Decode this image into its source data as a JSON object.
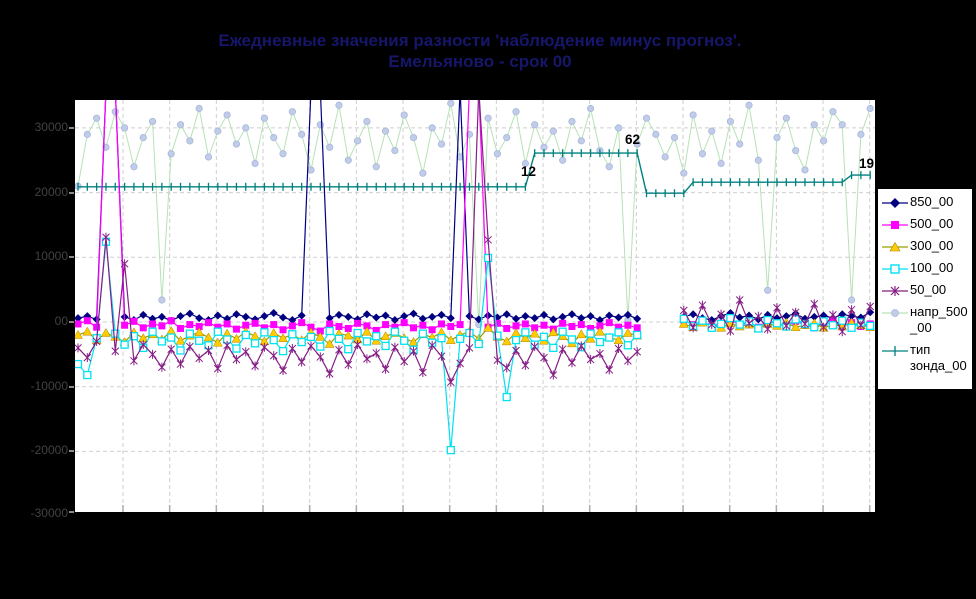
{
  "title": {
    "line1": "Ежедневные значения разности 'наблюдение минус прогноз'.",
    "line2": "Емельяново - срок 00"
  },
  "legend": {
    "items": [
      {
        "key": "850_00",
        "lines": [
          "850_00"
        ]
      },
      {
        "key": "500_00",
        "lines": [
          "500_00"
        ]
      },
      {
        "key": "300_00",
        "lines": [
          "300_00"
        ]
      },
      {
        "key": "100_00",
        "lines": [
          "100_00"
        ]
      },
      {
        "key": "50_00",
        "lines": [
          "50_00"
        ]
      },
      {
        "key": "napr_500_00",
        "lines": [
          "напр_500",
          "_00"
        ]
      },
      {
        "key": "tip_zonda_00",
        "lines": [
          "тип",
          "зонда_00"
        ]
      }
    ]
  },
  "chart_data": {
    "type": "line",
    "title": "Ежедневные значения разности 'наблюдение минус прогноз'. Емельяново - срок 00",
    "grid": "dashed",
    "legend_position": "right",
    "y_axis": {
      "labels": [
        "30000",
        "20000",
        "10000",
        "00",
        "-10000",
        "-20000",
        "-30000"
      ],
      "values": [
        30000,
        20000,
        10000,
        0,
        -10000,
        -20000,
        -30000
      ],
      "ylim": [
        -32000,
        34000
      ]
    },
    "x_axis": {
      "labels_visible": false,
      "gridline_count": 17,
      "points": 86
    },
    "annotations": [
      {
        "text": "12",
        "x": 446,
        "y": 76
      },
      {
        "text": "62",
        "x": 550,
        "y": 44
      },
      {
        "text": "19",
        "x": 784,
        "y": 68
      }
    ],
    "colors": {
      "s850": "#000080",
      "s500": "#FF00FF",
      "s300_line": "#98A000",
      "s300_marker": "#FFCC00",
      "s100": "#00E1F2",
      "s50": "#851F85",
      "napr_line": "#B6E2B6",
      "napr_marker": "#C0CCE8",
      "tip": "#008080",
      "gridline": "#CFCFCF",
      "annotation": "#000000"
    },
    "series": [
      {
        "name": "850_00",
        "color": "#000080",
        "marker": "diamond",
        "values": [
          600,
          900,
          400,
          36000,
          36000,
          800,
          300,
          1100,
          500,
          800,
          200,
          900,
          1300,
          600,
          300,
          1000,
          500,
          1200,
          800,
          400,
          900,
          1400,
          700,
          300,
          1000,
          36000,
          36000,
          600,
          1100,
          800,
          400,
          1200,
          700,
          1000,
          300,
          900,
          1300,
          500,
          800,
          1100,
          600,
          36000,
          900,
          400,
          1000,
          700,
          1200,
          500,
          900,
          600,
          1100,
          400,
          800,
          1200,
          600,
          900,
          300,
          1000,
          700,
          1100,
          500,
          null,
          null,
          null,
          null,
          800,
          1200,
          600,
          300,
          900,
          1400,
          700,
          1000,
          400,
          1100,
          600,
          900,
          1300,
          500,
          800,
          1000,
          600,
          1200,
          900,
          700,
          1500
        ]
      },
      {
        "name": "500_00",
        "color": "#FF00FF",
        "marker": "square",
        "values": [
          -300,
          200,
          -800,
          36000,
          36000,
          -500,
          100,
          -900,
          -300,
          -600,
          200,
          -1000,
          -400,
          -700,
          -100,
          -800,
          -300,
          -1100,
          -500,
          -200,
          -900,
          -400,
          -1200,
          -600,
          -100,
          -800,
          -1400,
          -300,
          -700,
          -1000,
          -200,
          -600,
          -1300,
          -400,
          -800,
          -100,
          -900,
          -500,
          -1200,
          -300,
          -700,
          -400,
          36000,
          36000,
          -800,
          -200,
          -1000,
          -600,
          -300,
          -900,
          -500,
          -1100,
          -200,
          -700,
          -400,
          -1000,
          -600,
          -100,
          -800,
          -500,
          -900,
          null,
          null,
          null,
          null,
          300,
          -400,
          100,
          -700,
          -200,
          400,
          -500,
          -100,
          -800,
          200,
          -300,
          -600,
          100,
          -400,
          -900,
          -200,
          300,
          -500,
          -100,
          -700,
          -300
        ]
      },
      {
        "name": "300_00",
        "color": "#98A000",
        "marker": "triangle",
        "marker_color": "#FFCC00",
        "values": [
          -2000,
          -1500,
          -2800,
          -1700,
          -2300,
          -3100,
          -1600,
          -2500,
          -1900,
          -2700,
          -1400,
          -2900,
          -2100,
          -1600,
          -2400,
          -3200,
          -1800,
          -2600,
          -1500,
          -2200,
          -3000,
          -1700,
          -2500,
          -1900,
          -2800,
          -1600,
          -2300,
          -3400,
          -1800,
          -2100,
          -2700,
          -1500,
          -2900,
          -2200,
          -1700,
          -2500,
          -3100,
          -1900,
          -2400,
          -1600,
          -2800,
          -2000,
          -1500,
          -2600,
          -900,
          -2300,
          -3000,
          -1700,
          -2500,
          -1800,
          -2900,
          -1600,
          -2200,
          -3300,
          -1900,
          -2600,
          -1500,
          -2400,
          -2800,
          -1700,
          -2100,
          null,
          null,
          null,
          null,
          -300,
          -800,
          -100,
          -600,
          -900,
          -200,
          -700,
          -400,
          -1000,
          -300,
          -600,
          -100,
          -800,
          -500,
          -200,
          -900,
          -400,
          -700,
          -100,
          -500,
          -800
        ]
      },
      {
        "name": "100_00",
        "color": "#00E1F2",
        "marker": "square-open",
        "values": [
          -6500,
          -8200,
          -2500,
          12400,
          -1800,
          -3500,
          -2200,
          -4000,
          -1500,
          -3000,
          -2400,
          -4400,
          -1800,
          -2900,
          -3600,
          -1500,
          -2700,
          -4100,
          -2000,
          -3300,
          -1600,
          -2800,
          -4500,
          -1900,
          -3100,
          -2300,
          -3800,
          -1400,
          -2600,
          -4200,
          -1700,
          -3000,
          -2200,
          -3700,
          -1500,
          -2900,
          -4300,
          -1800,
          -3200,
          -2500,
          -19800,
          -2600,
          -1700,
          -3400,
          9900,
          -2100,
          -11600,
          -2800,
          -1600,
          -3500,
          -2300,
          -4000,
          -1500,
          -2700,
          -3900,
          -1800,
          -3100,
          -2400,
          -1600,
          -3600,
          -2000,
          null,
          null,
          null,
          null,
          500,
          -600,
          200,
          -900,
          -300,
          600,
          -400,
          100,
          -1000,
          300,
          -200,
          -700,
          400,
          -300,
          -800,
          100,
          -500,
          200,
          -900,
          -100,
          -600
        ]
      },
      {
        "name": "50_00",
        "color": "#851F85",
        "marker": "asterisk",
        "values": [
          -4000,
          -5500,
          -3000,
          13100,
          -4500,
          9000,
          -6000,
          -3500,
          -5000,
          -7000,
          -4200,
          -6500,
          -3800,
          -5600,
          -4400,
          -7200,
          -3600,
          -5800,
          -4600,
          -6800,
          -3900,
          -5200,
          -7500,
          -4100,
          -6200,
          -3700,
          -5400,
          -8000,
          -4300,
          -6600,
          -3500,
          -5700,
          -4800,
          -7300,
          -3900,
          -6100,
          -4500,
          -7800,
          -3600,
          -5300,
          -9300,
          -6400,
          -4000,
          36000,
          12700,
          -5900,
          -7100,
          -4400,
          -6700,
          -3800,
          -5500,
          -8200,
          -4200,
          -6300,
          -3700,
          -5800,
          -4900,
          -7400,
          -4100,
          -6000,
          -4600,
          null,
          null,
          null,
          null,
          1800,
          -900,
          2600,
          -400,
          1200,
          -1400,
          3400,
          -200,
          900,
          -1100,
          2200,
          -600,
          1500,
          -300,
          2800,
          -800,
          1100,
          -1500,
          1900,
          -500,
          2400
        ]
      },
      {
        "name": "напр_500_00",
        "color": "#B6E2B6",
        "marker": "circle",
        "marker_color": "#C0CCE8",
        "values": [
          21000,
          29000,
          31500,
          27000,
          32500,
          30000,
          24000,
          28500,
          31000,
          3400,
          26000,
          30500,
          28000,
          33000,
          25500,
          29500,
          32000,
          27500,
          30000,
          24500,
          31500,
          28500,
          26000,
          32500,
          29000,
          23500,
          30500,
          27000,
          33500,
          25000,
          28000,
          31000,
          24000,
          29500,
          26500,
          32000,
          28500,
          23000,
          30000,
          27500,
          33800,
          25500,
          29000,
          -400,
          31500,
          26000,
          28500,
          32500,
          24500,
          30500,
          27000,
          29500,
          25000,
          31000,
          28000,
          33000,
          26500,
          24000,
          30000,
          300,
          27500,
          31500,
          29000,
          25500,
          28500,
          23000,
          32000,
          26000,
          29500,
          24500,
          31000,
          27500,
          33500,
          25000,
          4900,
          28500,
          31500,
          26500,
          23500,
          30500,
          28000,
          32500,
          30500,
          3400,
          29000,
          33000
        ]
      },
      {
        "name": "тип зонда_00",
        "color": "#008080",
        "marker": "plus",
        "values": [
          20900,
          20900,
          20900,
          20900,
          20900,
          20900,
          20900,
          20900,
          20900,
          20900,
          20900,
          20900,
          20900,
          20900,
          20900,
          20900,
          20900,
          20900,
          20900,
          20900,
          20900,
          20900,
          20900,
          20900,
          20900,
          20900,
          20900,
          20900,
          20900,
          20900,
          20900,
          20900,
          20900,
          20900,
          20900,
          20900,
          20900,
          20900,
          20900,
          20900,
          20900,
          20900,
          20900,
          20900,
          20900,
          20900,
          20900,
          20900,
          20900,
          26100,
          26100,
          26100,
          26100,
          26100,
          26100,
          26100,
          26100,
          26100,
          26100,
          26100,
          26100,
          19900,
          19900,
          19900,
          19900,
          19900,
          21600,
          21600,
          21600,
          21600,
          21600,
          21600,
          21600,
          21600,
          21600,
          21600,
          21600,
          21600,
          21600,
          21600,
          21600,
          21600,
          21600,
          22700,
          22700,
          22700
        ]
      }
    ]
  }
}
